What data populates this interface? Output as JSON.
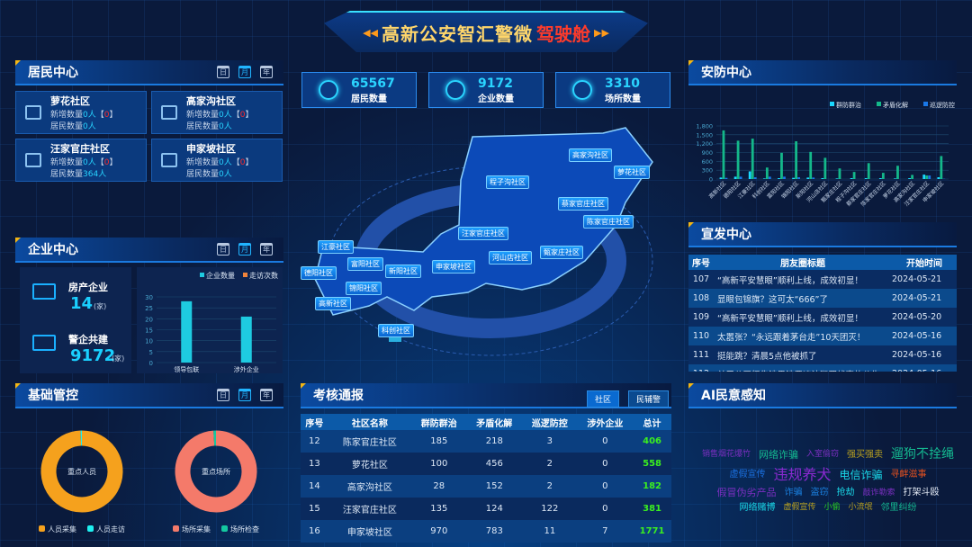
{
  "header": {
    "title_main": "高新公安智汇警微",
    "title_accent": "驾驶舱"
  },
  "calendar": [
    "日",
    "月",
    "年"
  ],
  "resident": {
    "title": "居民中心",
    "new_label": "新增数量",
    "res_label": "居民数量",
    "cards": [
      {
        "name": "萝花社区",
        "new": "0人",
        "flag": "0",
        "res": "0人"
      },
      {
        "name": "高家沟社区",
        "new": "0人",
        "flag": "0",
        "res": "0人"
      },
      {
        "name": "汪家官庄社区",
        "new": "0人",
        "flag": "0",
        "res": "364人"
      },
      {
        "name": "申家坡社区",
        "new": "0人",
        "flag": "0",
        "res": "0人"
      }
    ]
  },
  "enterprise": {
    "title": "企业中心",
    "items": [
      {
        "label": "房产企业",
        "value": "14",
        "unit": "(家)"
      },
      {
        "label": "警企共建",
        "value": "9172",
        "unit": "(家)"
      }
    ],
    "chart_data": {
      "type": "bar",
      "categories": [
        "领导包联",
        "涉外企业"
      ],
      "series": [
        {
          "name": "企业数量",
          "values": [
            28,
            21
          ],
          "color": "#1ecbe1"
        },
        {
          "name": "走访次数",
          "values": [
            0,
            0
          ],
          "color": "#f0843c"
        }
      ],
      "ylim": [
        0,
        30
      ],
      "yticks": [
        0,
        5,
        10,
        15,
        20,
        25,
        30
      ]
    }
  },
  "basic": {
    "title": "基础管控",
    "donuts": [
      {
        "center": "重点人员",
        "legend": [
          {
            "name": "人员采集",
            "color": "#f5a11d",
            "value": 99.5
          },
          {
            "name": "人员走访",
            "color": "#1ef0f0",
            "value": 0.5
          }
        ]
      },
      {
        "center": "重点场所",
        "legend": [
          {
            "name": "场所采集",
            "color": "#f47a6a",
            "value": 99
          },
          {
            "name": "场所检查",
            "color": "#14c8a0",
            "value": 1
          }
        ]
      }
    ]
  },
  "stats": [
    {
      "value": "65567",
      "label": "居民数量"
    },
    {
      "value": "9172",
      "label": "企业数量"
    },
    {
      "value": "3310",
      "label": "场所数量"
    }
  ],
  "map": {
    "labels": [
      "高家沟社区",
      "萝花社区",
      "程子沟社区",
      "蔡家官庄社区",
      "陈家官庄社区",
      "汪家官庄社区",
      "河山店社区",
      "甄家庄社区",
      "申家坡社区",
      "新阳社区",
      "江豪社区",
      "富阳社区",
      "德阳社区",
      "锦阳社区",
      "高新社区",
      "科创社区"
    ]
  },
  "security": {
    "title": "安防中心",
    "chart_data": {
      "type": "bar",
      "ylim": [
        0,
        1800
      ],
      "yticks": [
        "0",
        "300",
        "600",
        "900",
        "1,200",
        "1,500",
        "1,800"
      ],
      "categories": [
        "高新社区",
        "德阳社区",
        "江豪社区",
        "科创社区",
        "富阳社区",
        "锦阳社区",
        "新阳社区",
        "河山店社区",
        "甄家庄社区",
        "程子沟社区",
        "蔡家官庄社区",
        "陈家官庄社区",
        "萝花社区",
        "高家沟社区",
        "汪家官庄社区",
        "申家坡社区"
      ],
      "series": [
        {
          "name": "群防群治",
          "color": "#1ad8ff",
          "values": [
            50,
            80,
            260,
            20,
            30,
            40,
            50,
            30,
            20,
            30,
            30,
            30,
            20,
            30,
            150,
            60
          ]
        },
        {
          "name": "矛盾化解",
          "color": "#14b88a",
          "values": [
            1650,
            1300,
            1370,
            390,
            890,
            1280,
            920,
            720,
            360,
            240,
            540,
            210,
            450,
            140,
            120,
            780
          ]
        },
        {
          "name": "巡逻防控",
          "color": "#1a78e8",
          "values": [
            40,
            80,
            60,
            80,
            80,
            60,
            50,
            0,
            0,
            0,
            0,
            0,
            0,
            0,
            120,
            10
          ]
        }
      ]
    }
  },
  "propaganda": {
    "title": "宣发中心",
    "headers": [
      "序号",
      "朋友圈标题",
      "开始时间"
    ],
    "rows": [
      [
        "107",
        "“高新平安慧眼”顺利上线，成效初显！",
        "2024-05-21"
      ],
      [
        "108",
        "显眼包锦旗？这可太“666”了",
        "2024-05-21"
      ],
      [
        "109",
        "“高新平安慧眼”顺利上线，成效初显！",
        "2024-05-20"
      ],
      [
        "110",
        "太嚣张？“永远跟着茅台走”10天团灭！",
        "2024-05-16"
      ],
      [
        "111",
        "挺能跳？清晨5点他被抓了",
        "2024-05-16"
      ],
      [
        "112",
        "关于公开征集涉黑涉恶违法犯罪线索的公告",
        "2024-05-16"
      ]
    ]
  },
  "assessment": {
    "title": "考核通报",
    "tabs": [
      "社区",
      "民辅警"
    ],
    "headers": [
      "序号",
      "社区名称",
      "群防群治",
      "矛盾化解",
      "巡逻防控",
      "涉外企业",
      "总计"
    ],
    "rows": [
      [
        "12",
        "陈家官庄社区",
        "185",
        "218",
        "3",
        "0",
        "406"
      ],
      [
        "13",
        "萝花社区",
        "100",
        "456",
        "2",
        "0",
        "558"
      ],
      [
        "14",
        "高家沟社区",
        "28",
        "152",
        "2",
        "0",
        "182"
      ],
      [
        "15",
        "汪家官庄社区",
        "135",
        "124",
        "122",
        "0",
        "381"
      ],
      [
        "16",
        "申家坡社区",
        "970",
        "783",
        "11",
        "7",
        "1771"
      ]
    ]
  },
  "ai": {
    "title": "AI民意感知",
    "words": [
      {
        "t": "销售烟花爆竹",
        "c": "#7a2fc0"
      },
      {
        "t": "网络诈骗",
        "c": "#14b890"
      },
      {
        "t": "入室偷窃",
        "c": "#7a2fc0"
      },
      {
        "t": "强买强卖",
        "c": "#b8a020"
      },
      {
        "t": "遛狗不拴绳",
        "c": "#14b890"
      },
      {
        "t": "虚假宣传",
        "c": "#1a70e0"
      },
      {
        "t": "违规养犬",
        "c": "#8a2ad0"
      },
      {
        "t": "电信诈骗",
        "c": "#1ad8e8"
      },
      {
        "t": "寻衅滋事",
        "c": "#e05020"
      },
      {
        "t": "假冒伪劣产品",
        "c": "#7a2fc0"
      },
      {
        "t": "诈骗",
        "c": "#1a80e0"
      },
      {
        "t": "盗窃",
        "c": "#1a80e0"
      },
      {
        "t": "抢劫",
        "c": "#1ad8e8"
      },
      {
        "t": "敲诈勒索",
        "c": "#7a2fc0"
      },
      {
        "t": "打架斗殴",
        "c": "#e8eef8"
      },
      {
        "t": "网络赌博",
        "c": "#1ad8e8"
      },
      {
        "t": "虚假宣传",
        "c": "#b8a020"
      },
      {
        "t": "小偷",
        "c": "#2ad020"
      },
      {
        "t": "小流氓",
        "c": "#b8a020"
      },
      {
        "t": "邻里纠纷",
        "c": "#14b890"
      }
    ]
  }
}
